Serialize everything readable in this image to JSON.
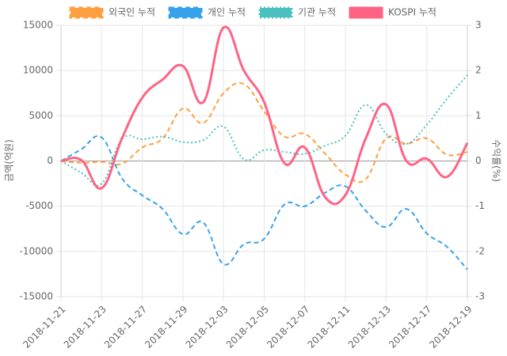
{
  "chart_data": {
    "type": "line",
    "categories": [
      "2018-11-21",
      null,
      "2018-11-23",
      null,
      "2018-11-27",
      null,
      "2018-11-29",
      null,
      "2018-12-03",
      null,
      "2018-12-05",
      null,
      "2018-12-07",
      null,
      "2018-12-11",
      null,
      "2018-12-13",
      null,
      "2018-12-17",
      null,
      "2018-12-19"
    ],
    "y_label": "금액(억원)",
    "y2_label": "수익률(%)",
    "ylim": [
      -15000,
      15000
    ],
    "yticks": [
      -15000,
      -10000,
      -5000,
      0,
      5000,
      10000,
      15000
    ],
    "y2lim": [
      -3,
      3
    ],
    "y2ticks": [
      -3,
      -2,
      -1,
      0,
      1,
      2,
      3
    ],
    "grid": true,
    "series": [
      {
        "name": "외국인 누적",
        "color": "#ff9f40",
        "style": "dashed",
        "values": [
          0,
          -200,
          -100,
          -300,
          1500,
          2500,
          5800,
          4200,
          7500,
          8500,
          5500,
          2700,
          3000,
          800,
          -1500,
          -2000,
          2500,
          1900,
          2500,
          700,
          1000
        ]
      },
      {
        "name": "개인 누적",
        "color": "#36a2eb",
        "style": "dashed",
        "values": [
          0,
          1300,
          2600,
          -1900,
          -3800,
          -5300,
          -8100,
          -6800,
          -11400,
          -9200,
          -8600,
          -4800,
          -5000,
          -3500,
          -2800,
          -5500,
          -7300,
          -5300,
          -8000,
          -9500,
          -12000
        ]
      },
      {
        "name": "기관 누적",
        "color": "#4bc0c0",
        "style": "dotted",
        "values": [
          0,
          -1300,
          -2500,
          2400,
          2400,
          2700,
          2100,
          2300,
          3800,
          200,
          1200,
          1000,
          800,
          1700,
          2800,
          6200,
          3000,
          1900,
          4000,
          6900,
          9500
        ]
      },
      {
        "name": "KOSPI 누적",
        "color": "#ff6384",
        "style": "solid",
        "axis": "y2",
        "values": [
          0,
          0.02,
          -0.6,
          0.5,
          1.4,
          1.8,
          2.1,
          1.3,
          2.95,
          2.0,
          1.3,
          -0.05,
          0.3,
          -0.8,
          -0.75,
          0.5,
          1.25,
          0,
          0.05,
          -0.35,
          0.4
        ]
      }
    ]
  }
}
